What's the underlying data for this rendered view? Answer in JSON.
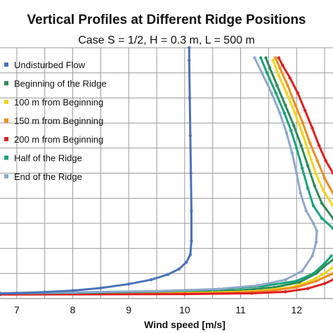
{
  "chart_data": {
    "type": "line",
    "title": "Vertical Profiles at Different Ridge Positions",
    "subtitle": "Case S = 1/2, H = 0.3 m, L = 500 m",
    "xlabel": "Wind speed [m/s]",
    "ylabel": "",
    "x_ticks": [
      "7",
      "8",
      "9",
      "10",
      "11",
      "12"
    ],
    "xlim": [
      6.7,
      12.65
    ],
    "ylim": [
      0,
      1
    ],
    "grid": true,
    "legend_position": "top-left",
    "series": [
      {
        "name": "Undisturbed Flow",
        "color": "#4a72b8",
        "points": [
          [
            6.7,
            0.02
          ],
          [
            7.0,
            0.022
          ],
          [
            7.5,
            0.026
          ],
          [
            8.0,
            0.032
          ],
          [
            8.5,
            0.042
          ],
          [
            9.0,
            0.058
          ],
          [
            9.4,
            0.075
          ],
          [
            9.7,
            0.096
          ],
          [
            9.9,
            0.118
          ],
          [
            10.03,
            0.145
          ],
          [
            10.1,
            0.175
          ],
          [
            10.12,
            0.23
          ],
          [
            10.12,
            0.35
          ],
          [
            10.11,
            0.5
          ],
          [
            10.1,
            0.65
          ],
          [
            10.09,
            0.8
          ],
          [
            10.08,
            0.95
          ],
          [
            10.08,
            1.0
          ]
        ]
      },
      {
        "name": "Beginning of the Ridge",
        "color": "#2e8b57",
        "points": [
          [
            6.7,
            0.02
          ],
          [
            8.5,
            0.022
          ],
          [
            10.0,
            0.026
          ],
          [
            11.0,
            0.033
          ],
          [
            11.6,
            0.045
          ],
          [
            12.05,
            0.065
          ],
          [
            12.35,
            0.1
          ],
          [
            12.5,
            0.13
          ],
          [
            12.65,
            0.155
          ]
        ]
      },
      {
        "name": "100 m from Beginning",
        "color": "#f2d51c",
        "points": [
          [
            6.7,
            0.018
          ],
          [
            9.0,
            0.02
          ],
          [
            10.5,
            0.024
          ],
          [
            11.3,
            0.03
          ],
          [
            11.9,
            0.045
          ],
          [
            12.25,
            0.07
          ],
          [
            12.5,
            0.1
          ],
          [
            12.65,
            0.125
          ]
        ]
      },
      {
        "name": "150 m from Beginning",
        "color": "#f08c1e",
        "points": [
          [
            6.7,
            0.017
          ],
          [
            9.5,
            0.019
          ],
          [
            10.8,
            0.023
          ],
          [
            11.5,
            0.03
          ],
          [
            12.0,
            0.045
          ],
          [
            12.35,
            0.07
          ],
          [
            12.65,
            0.1
          ]
        ]
      },
      {
        "name": "200 m from Beginning",
        "color": "#e02020",
        "points": [
          [
            6.7,
            0.016
          ],
          [
            10.0,
            0.018
          ],
          [
            11.2,
            0.021
          ],
          [
            11.8,
            0.027
          ],
          [
            12.2,
            0.04
          ],
          [
            12.5,
            0.06
          ],
          [
            12.65,
            0.075
          ]
        ]
      },
      {
        "name": "Half of the Ridge",
        "color": "#1aa37a",
        "points": [
          [
            6.7,
            0.021
          ],
          [
            8.0,
            0.023
          ],
          [
            9.5,
            0.028
          ],
          [
            10.6,
            0.036
          ],
          [
            11.4,
            0.05
          ],
          [
            12.0,
            0.07
          ],
          [
            12.3,
            0.1
          ],
          [
            12.5,
            0.14
          ],
          [
            12.62,
            0.17
          ]
        ]
      },
      {
        "name": "End of the Ridge",
        "color": "#90a8cc",
        "points": [
          [
            6.7,
            0.022
          ],
          [
            8.0,
            0.025
          ],
          [
            9.5,
            0.03
          ],
          [
            10.6,
            0.038
          ],
          [
            11.3,
            0.052
          ],
          [
            11.8,
            0.075
          ],
          [
            12.1,
            0.11
          ],
          [
            12.28,
            0.17
          ],
          [
            12.35,
            0.225
          ]
        ]
      }
    ],
    "upper_profiles": [
      {
        "name": "End of the Ridge",
        "color": "#90a8cc",
        "points": [
          [
            12.35,
            0.225
          ],
          [
            12.36,
            0.27
          ],
          [
            12.3,
            0.3
          ],
          [
            12.17,
            0.35
          ],
          [
            12.07,
            0.42
          ],
          [
            12.0,
            0.5
          ],
          [
            11.92,
            0.58
          ],
          [
            11.82,
            0.66
          ],
          [
            11.7,
            0.74
          ],
          [
            11.55,
            0.82
          ],
          [
            11.38,
            0.9
          ],
          [
            11.25,
            0.96
          ]
        ]
      },
      {
        "name": "Half of the Ridge",
        "color": "#1aa37a",
        "points": [
          [
            12.65,
            0.28
          ],
          [
            12.45,
            0.32
          ],
          [
            12.3,
            0.37
          ],
          [
            12.2,
            0.44
          ],
          [
            12.1,
            0.52
          ],
          [
            12.0,
            0.6
          ],
          [
            11.9,
            0.67
          ],
          [
            11.78,
            0.74
          ],
          [
            11.63,
            0.82
          ],
          [
            11.47,
            0.9
          ],
          [
            11.36,
            0.96
          ]
        ]
      },
      {
        "name": "Beginning of the Ridge",
        "color": "#2e8b57",
        "points": [
          [
            12.65,
            0.32
          ],
          [
            12.45,
            0.38
          ],
          [
            12.32,
            0.45
          ],
          [
            12.2,
            0.53
          ],
          [
            12.08,
            0.61
          ],
          [
            11.95,
            0.69
          ],
          [
            11.8,
            0.77
          ],
          [
            11.65,
            0.85
          ],
          [
            11.52,
            0.92
          ],
          [
            11.45,
            0.96
          ]
        ]
      },
      {
        "name": "100 m from Beginning",
        "color": "#f2d51c",
        "points": [
          [
            12.65,
            0.37
          ],
          [
            12.48,
            0.43
          ],
          [
            12.34,
            0.5
          ],
          [
            12.22,
            0.58
          ],
          [
            12.1,
            0.66
          ],
          [
            11.97,
            0.74
          ],
          [
            11.82,
            0.82
          ],
          [
            11.68,
            0.89
          ],
          [
            11.58,
            0.95
          ]
        ]
      },
      {
        "name": "150 m from Beginning",
        "color": "#f08c1e",
        "points": [
          [
            12.65,
            0.42
          ],
          [
            12.5,
            0.48
          ],
          [
            12.37,
            0.55
          ],
          [
            12.24,
            0.62
          ],
          [
            12.11,
            0.7
          ],
          [
            11.98,
            0.77
          ],
          [
            11.84,
            0.85
          ],
          [
            11.7,
            0.92
          ],
          [
            11.62,
            0.96
          ]
        ]
      },
      {
        "name": "200 m from Beginning",
        "color": "#e02020",
        "points": [
          [
            12.65,
            0.5
          ],
          [
            12.52,
            0.55
          ],
          [
            12.4,
            0.61
          ],
          [
            12.28,
            0.68
          ],
          [
            12.15,
            0.75
          ],
          [
            12.02,
            0.82
          ],
          [
            11.88,
            0.88
          ],
          [
            11.75,
            0.93
          ],
          [
            11.68,
            0.96
          ]
        ]
      }
    ]
  }
}
